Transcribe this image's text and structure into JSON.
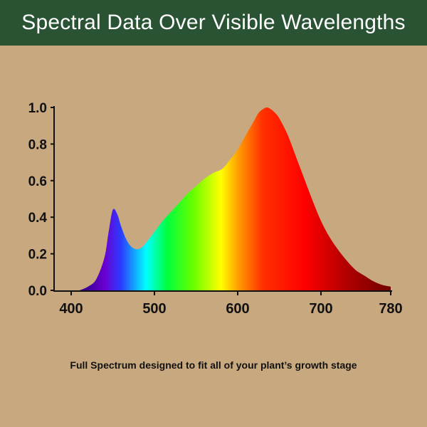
{
  "header": {
    "title": "Spectral Data Over Visible Wavelengths",
    "background": "#2a5334"
  },
  "caption": "Full Spectrum designed to fit all of your plant’s growth stage",
  "background_color": "#c8a87e",
  "chart_data": {
    "type": "area",
    "title": "Spectral Data Over Visible Wavelengths",
    "xlabel": "",
    "ylabel": "",
    "xlim": [
      380,
      780
    ],
    "ylim": [
      0,
      1.0
    ],
    "x_ticks": [
      400,
      500,
      600,
      700,
      780
    ],
    "y_ticks": [
      "0.0",
      "0.2",
      "0.4",
      "0.6",
      "0.8",
      "1.0"
    ],
    "grid": false,
    "legend": "none",
    "series": [
      {
        "name": "Full Spectrum",
        "x": [
          410,
          420,
          430,
          440,
          445,
          450,
          455,
          460,
          465,
          470,
          475,
          480,
          485,
          490,
          500,
          510,
          520,
          530,
          540,
          550,
          560,
          570,
          580,
          585,
          590,
          600,
          610,
          620,
          625,
          630,
          635,
          640,
          645,
          650,
          660,
          670,
          680,
          690,
          700,
          710,
          720,
          730,
          740,
          750,
          760,
          770,
          780
        ],
        "y": [
          0.0,
          0.02,
          0.06,
          0.18,
          0.32,
          0.44,
          0.42,
          0.35,
          0.29,
          0.25,
          0.23,
          0.225,
          0.235,
          0.26,
          0.32,
          0.38,
          0.43,
          0.48,
          0.53,
          0.57,
          0.61,
          0.64,
          0.66,
          0.68,
          0.71,
          0.77,
          0.85,
          0.93,
          0.97,
          0.99,
          1.0,
          0.99,
          0.97,
          0.94,
          0.85,
          0.73,
          0.61,
          0.49,
          0.38,
          0.29,
          0.22,
          0.16,
          0.11,
          0.08,
          0.05,
          0.03,
          0.02
        ]
      }
    ],
    "gradient_stops": [
      {
        "wavelength": 410,
        "color": "#2a0080"
      },
      {
        "wavelength": 440,
        "color": "#6a00d0"
      },
      {
        "wavelength": 460,
        "color": "#2a3cff"
      },
      {
        "wavelength": 490,
        "color": "#00ffff"
      },
      {
        "wavelength": 515,
        "color": "#00ff40"
      },
      {
        "wavelength": 545,
        "color": "#60ff00"
      },
      {
        "wavelength": 580,
        "color": "#ffff00"
      },
      {
        "wavelength": 600,
        "color": "#ffa000"
      },
      {
        "wavelength": 630,
        "color": "#ff3000"
      },
      {
        "wavelength": 680,
        "color": "#ff0000"
      },
      {
        "wavelength": 730,
        "color": "#b00000"
      },
      {
        "wavelength": 780,
        "color": "#700000"
      }
    ]
  }
}
